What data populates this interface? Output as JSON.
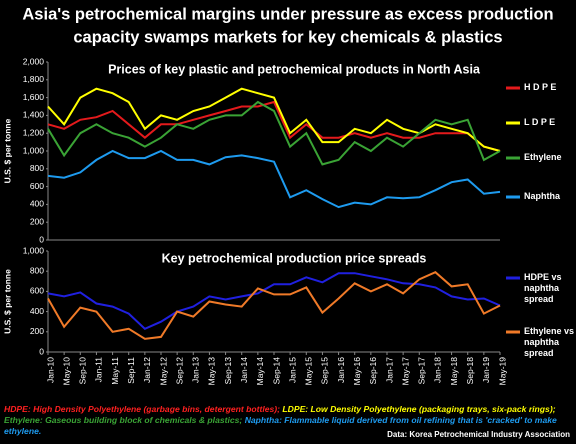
{
  "title": [
    "Asia's petrochemical margins under pressure as excess production",
    "capacity swamps markets for key chemicals & plastics"
  ],
  "notes": [
    {
      "text": "HDPE: High Density Polyethylene (garbage bins, detergent bottles);",
      "color": "#ff2020"
    },
    {
      "text": "LDPE: Low Density Polyethylene (packaging trays, six-pack rings);",
      "color": "#ffff00"
    },
    {
      "text": "Ethylene: Gaseous building block of chemicals & plastics;",
      "color": "#3aa335"
    },
    {
      "text": "Naphtha:  Flammable liquid derived from oil refining that is 'cracked' to make ethylene.",
      "color": "#1e9bef"
    }
  ],
  "source": "Data: Korea Petrochemical Industry Association",
  "chart_data": [
    {
      "type": "line",
      "title": "Prices of key plastic and petrochemical products in North Asia",
      "ylabel": "U.S. $ per tonne",
      "ylim": [
        0,
        2000
      ],
      "yticks": [
        0,
        200,
        400,
        600,
        800,
        {
          "value": 1000,
          "label": "1,000"
        },
        {
          "value": 1200,
          "label": "1,200"
        },
        {
          "value": 1400,
          "label": "1,400"
        },
        {
          "value": 1600,
          "label": "1,600"
        },
        {
          "value": 1800,
          "label": "1,800"
        },
        {
          "value": 2000,
          "label": "2,000"
        }
      ],
      "grid": false,
      "series": [
        {
          "name": "H D P E",
          "color": "#e41a1c",
          "values": [
            1300,
            1250,
            1350,
            1380,
            1450,
            1300,
            1150,
            1300,
            1300,
            1350,
            1400,
            1450,
            1500,
            1500,
            1550,
            1150,
            1300,
            1150,
            1150,
            1200,
            1150,
            1200,
            1150,
            1150,
            1200,
            1200,
            1200,
            1050,
            1000
          ]
        },
        {
          "name": "L D P E",
          "color": "#ffff00",
          "values": [
            1500,
            1300,
            1600,
            1700,
            1650,
            1550,
            1250,
            1400,
            1350,
            1450,
            1500,
            1600,
            1700,
            1650,
            1600,
            1200,
            1350,
            1100,
            1100,
            1250,
            1200,
            1350,
            1250,
            1200,
            1300,
            1250,
            1200,
            1050,
            1000
          ]
        },
        {
          "name": "Ethylene",
          "color": "#3aa335",
          "values": [
            1250,
            950,
            1200,
            1300,
            1200,
            1150,
            1050,
            1150,
            1300,
            1250,
            1350,
            1400,
            1400,
            1550,
            1450,
            1050,
            1200,
            850,
            900,
            1100,
            1000,
            1150,
            1050,
            1200,
            1350,
            1300,
            1350,
            900,
            1000
          ]
        },
        {
          "name": "Naphtha",
          "color": "#1e9bef",
          "values": [
            720,
            700,
            760,
            900,
            1000,
            920,
            920,
            1000,
            900,
            900,
            850,
            930,
            950,
            920,
            880,
            480,
            560,
            460,
            370,
            420,
            400,
            480,
            470,
            480,
            560,
            650,
            680,
            520,
            540
          ]
        }
      ]
    },
    {
      "type": "line",
      "title": "Key petrochemical production price spreads",
      "ylabel": "U.S. $ per tonne",
      "ylim": [
        0,
        1000
      ],
      "yticks": [
        0,
        200,
        400,
        600,
        800,
        {
          "value": 1000,
          "label": "1,000"
        }
      ],
      "grid": false,
      "categories": [
        "Jan-10",
        "May-10",
        "Sep-10",
        "Jan-11",
        "May-11",
        "Sep-11",
        "Jan-12",
        "May-12",
        "Sep-12",
        "Jan-13",
        "May-13",
        "Sep-13",
        "Jan-14",
        "May-14",
        "Sep-14",
        "Jan-15",
        "May-15",
        "Sep-15",
        "Jan-16",
        "May-16",
        "Sep-16",
        "Jan-17",
        "May-17",
        "Sep-17",
        "Jan-18",
        "May-18",
        "Sep-18",
        "Jan-19",
        "May-19"
      ],
      "series": [
        {
          "name": "HDPE vs naphtha spread",
          "color": "#2020e0",
          "values": [
            580,
            550,
            590,
            480,
            450,
            380,
            230,
            300,
            400,
            450,
            550,
            520,
            550,
            580,
            670,
            670,
            740,
            690,
            780,
            780,
            750,
            720,
            680,
            670,
            640,
            550,
            520,
            530,
            460
          ]
        },
        {
          "name": "Ethylene vs naphtha spread",
          "color": "#f07a28",
          "values": [
            530,
            250,
            440,
            400,
            200,
            230,
            130,
            150,
            400,
            350,
            500,
            470,
            450,
            630,
            570,
            570,
            640,
            390,
            530,
            680,
            600,
            670,
            580,
            720,
            790,
            650,
            670,
            380,
            460
          ]
        }
      ]
    }
  ]
}
